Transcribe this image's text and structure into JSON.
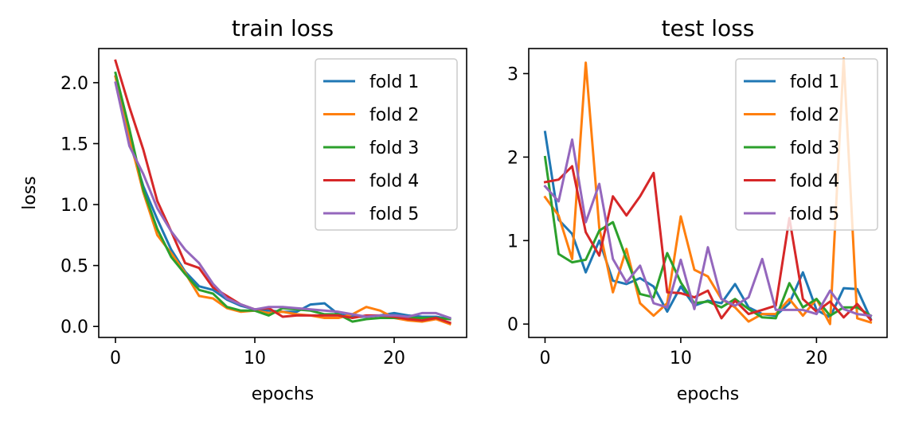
{
  "chart_data": [
    {
      "type": "line",
      "title": "train loss",
      "xlabel": "epochs",
      "ylabel": "loss",
      "xlim": [
        -1.2,
        25.2
      ],
      "ylim": [
        -0.09,
        2.28
      ],
      "xticks": [
        0,
        10,
        20
      ],
      "yticks": [
        0.0,
        0.5,
        1.0,
        1.5,
        2.0
      ],
      "ytick_labels": [
        "0.0",
        "0.5",
        "1.0",
        "1.5",
        "2.0"
      ],
      "legend_position": "upper right",
      "x": [
        0,
        1,
        2,
        3,
        4,
        5,
        6,
        7,
        8,
        9,
        10,
        11,
        12,
        13,
        14,
        15,
        16,
        17,
        18,
        19,
        20,
        21,
        22,
        23,
        24
      ],
      "series": [
        {
          "name": "fold 1",
          "color": "#1f77b4",
          "values": [
            2.05,
            1.52,
            1.15,
            0.88,
            0.63,
            0.45,
            0.33,
            0.3,
            0.22,
            0.17,
            0.14,
            0.13,
            0.12,
            0.12,
            0.18,
            0.19,
            0.1,
            0.08,
            0.08,
            0.09,
            0.11,
            0.09,
            0.08,
            0.08,
            0.06
          ]
        },
        {
          "name": "fold 2",
          "color": "#ff7f0e",
          "values": [
            2.05,
            1.55,
            1.1,
            0.75,
            0.6,
            0.44,
            0.25,
            0.23,
            0.15,
            0.12,
            0.13,
            0.11,
            0.12,
            0.1,
            0.09,
            0.07,
            0.07,
            0.1,
            0.16,
            0.13,
            0.07,
            0.05,
            0.04,
            0.06,
            0.02
          ]
        },
        {
          "name": "fold 3",
          "color": "#2ca02c",
          "values": [
            2.08,
            1.62,
            1.12,
            0.8,
            0.57,
            0.43,
            0.3,
            0.27,
            0.16,
            0.13,
            0.13,
            0.09,
            0.15,
            0.14,
            0.13,
            0.1,
            0.1,
            0.04,
            0.06,
            0.07,
            0.07,
            0.07,
            0.07,
            0.07,
            0.06
          ]
        },
        {
          "name": "fold 4",
          "color": "#d62728",
          "values": [
            2.18,
            1.8,
            1.45,
            1.03,
            0.78,
            0.52,
            0.48,
            0.32,
            0.25,
            0.18,
            0.14,
            0.15,
            0.08,
            0.09,
            0.09,
            0.09,
            0.09,
            0.07,
            0.09,
            0.09,
            0.08,
            0.06,
            0.05,
            0.07,
            0.03
          ]
        },
        {
          "name": "fold 5",
          "color": "#9467bd",
          "values": [
            2.0,
            1.48,
            1.25,
            0.97,
            0.78,
            0.63,
            0.52,
            0.35,
            0.23,
            0.18,
            0.14,
            0.16,
            0.16,
            0.15,
            0.14,
            0.13,
            0.12,
            0.1,
            0.08,
            0.09,
            0.09,
            0.08,
            0.11,
            0.11,
            0.07
          ]
        }
      ]
    },
    {
      "type": "line",
      "title": "test loss",
      "xlabel": "epochs",
      "ylabel": "",
      "xlim": [
        -1.2,
        25.2
      ],
      "ylim": [
        -0.16,
        3.3
      ],
      "xticks": [
        0,
        10,
        20
      ],
      "yticks": [
        0,
        1,
        2,
        3
      ],
      "ytick_labels": [
        "0",
        "1",
        "2",
        "3"
      ],
      "legend_position": "upper right",
      "x": [
        0,
        1,
        2,
        3,
        4,
        5,
        6,
        7,
        8,
        9,
        10,
        11,
        12,
        13,
        14,
        15,
        16,
        17,
        18,
        19,
        20,
        21,
        22,
        23,
        24
      ],
      "series": [
        {
          "name": "fold 1",
          "color": "#1f77b4",
          "values": [
            2.3,
            1.25,
            1.08,
            0.62,
            1.0,
            0.52,
            0.48,
            0.55,
            0.45,
            0.15,
            0.45,
            0.22,
            0.28,
            0.25,
            0.48,
            0.2,
            0.12,
            0.1,
            0.25,
            0.62,
            0.17,
            0.08,
            0.43,
            0.42,
            0.06
          ]
        },
        {
          "name": "fold 2",
          "color": "#ff7f0e",
          "values": [
            1.52,
            1.3,
            0.78,
            3.13,
            1.15,
            0.38,
            0.9,
            0.25,
            0.1,
            0.25,
            1.29,
            0.65,
            0.57,
            0.3,
            0.2,
            0.03,
            0.12,
            0.12,
            0.3,
            0.1,
            0.3,
            0.0,
            3.18,
            0.07,
            0.02
          ]
        },
        {
          "name": "fold 3",
          "color": "#2ca02c",
          "values": [
            2.0,
            0.84,
            0.74,
            0.77,
            1.12,
            1.22,
            0.78,
            0.36,
            0.32,
            0.85,
            0.5,
            0.25,
            0.27,
            0.2,
            0.3,
            0.18,
            0.08,
            0.07,
            0.49,
            0.2,
            0.3,
            0.1,
            0.2,
            0.2,
            0.1
          ]
        },
        {
          "name": "fold 4",
          "color": "#d62728",
          "values": [
            1.7,
            1.73,
            1.89,
            1.1,
            0.82,
            1.53,
            1.3,
            1.53,
            1.81,
            0.38,
            0.37,
            0.32,
            0.4,
            0.07,
            0.28,
            0.12,
            0.17,
            0.22,
            1.27,
            0.3,
            0.15,
            0.27,
            0.08,
            0.24,
            0.05
          ]
        },
        {
          "name": "fold 5",
          "color": "#9467bd",
          "values": [
            1.65,
            1.47,
            2.21,
            1.22,
            1.68,
            0.78,
            0.5,
            0.7,
            0.25,
            0.2,
            0.77,
            0.18,
            0.92,
            0.3,
            0.22,
            0.32,
            0.78,
            0.17,
            0.17,
            0.17,
            0.12,
            0.4,
            0.18,
            0.12,
            0.1
          ]
        }
      ]
    }
  ]
}
